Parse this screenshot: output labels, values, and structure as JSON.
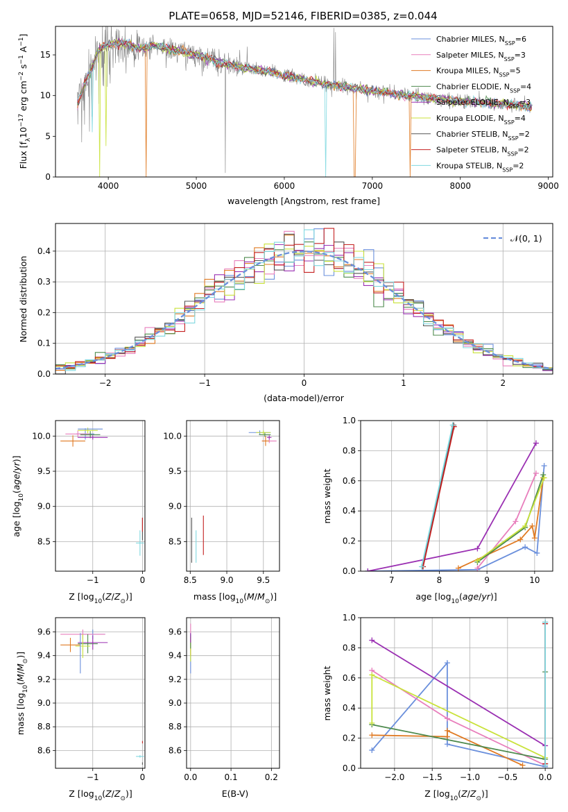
{
  "figure": {
    "title": "PLATE=0658, MJD=52146, FIBERID=0385, z=0.044"
  },
  "colors": {
    "Chabrier MILES": "#6a8fdc",
    "Salpeter MILES": "#e87ebc",
    "Kroupa MILES": "#e07a22",
    "Chabrier ELODIE": "#4d8a4d",
    "Salpeter ELODIE": "#9a2fb2",
    "Kroupa ELODIE": "#c9e23a",
    "Chabrier STELIB": "#555555",
    "Salpeter STELIB": "#c42020",
    "Kroupa STELIB": "#7fd8e0",
    "data": "#808080"
  },
  "chart_data": [
    {
      "id": "spectrum",
      "type": "line",
      "title": "PLATE=0658, MJD=52146, FIBERID=0385, z=0.044",
      "xlabel": "wavelength [Angstrom, rest frame]",
      "ylabel": "Flux [f_λ 10^-17 erg cm^-2 s^-1 A^-1]",
      "xlim": [
        3400,
        9050
      ],
      "ylim": [
        0,
        18.5
      ],
      "xticks": [
        "4000",
        "5000",
        "6000",
        "7000",
        "8000",
        "9000"
      ],
      "yticks": [
        "0",
        "5",
        "10",
        "15"
      ],
      "grid": false,
      "legend_position": "top-right",
      "legend": [
        {
          "series": "Chabrier MILES",
          "label": "Chabrier MILES, N_SSP=6",
          "main": "Chabrier MILES, N",
          "sub": "SSP",
          "tail": "=6"
        },
        {
          "series": "Salpeter MILES",
          "label": "Salpeter MILES, N_SSP=3",
          "main": "Salpeter MILES, N",
          "sub": "SSP",
          "tail": "=3"
        },
        {
          "series": "Kroupa MILES",
          "label": "Kroupa MILES, N_SSP=5",
          "main": "Kroupa MILES, N",
          "sub": "SSP",
          "tail": "=5"
        },
        {
          "series": "Chabrier ELODIE",
          "label": "Chabrier ELODIE, N_SSP=4",
          "main": "Chabrier ELODIE, N",
          "sub": "SSP",
          "tail": "=4"
        },
        {
          "series": "Salpeter ELODIE",
          "label": "Salpeter ELODIE, N_SSP=3",
          "main": "Salpeter ELODIE, N",
          "sub": "SSP",
          "tail": "=3"
        },
        {
          "series": "Kroupa ELODIE",
          "label": "Kroupa ELODIE, N_SSP=4",
          "main": "Kroupa ELODIE, N",
          "sub": "SSP",
          "tail": "=4"
        },
        {
          "series": "Chabrier STELIB",
          "label": "Chabrier STELIB, N_SSP=2",
          "main": "Chabrier STELIB, N",
          "sub": "SSP",
          "tail": "=2"
        },
        {
          "series": "Salpeter STELIB",
          "label": "Salpeter STELIB, N_SSP=2",
          "main": "Salpeter STELIB, N",
          "sub": "SSP",
          "tail": "=2"
        },
        {
          "series": "Kroupa STELIB",
          "label": "Kroupa STELIB, N_SSP=2",
          "main": "Kroupa STELIB, N",
          "sub": "SSP",
          "tail": "=2"
        }
      ],
      "continuum": [
        [
          3650,
          9.0
        ],
        [
          3700,
          10.5
        ],
        [
          3800,
          13.0
        ],
        [
          3900,
          15.8
        ],
        [
          4000,
          16.2
        ],
        [
          4100,
          16.5
        ],
        [
          4200,
          16.4
        ],
        [
          4300,
          16.0
        ],
        [
          4400,
          15.8
        ],
        [
          4500,
          16.2
        ],
        [
          4600,
          16.0
        ],
        [
          4700,
          15.6
        ],
        [
          4800,
          15.5
        ],
        [
          4900,
          15.2
        ],
        [
          5000,
          15.0
        ],
        [
          5200,
          14.3
        ],
        [
          5400,
          13.7
        ],
        [
          5600,
          13.3
        ],
        [
          5800,
          13.0
        ],
        [
          6000,
          12.5
        ],
        [
          6200,
          12.0
        ],
        [
          6400,
          11.5
        ],
        [
          6600,
          11.2
        ],
        [
          6800,
          10.9
        ],
        [
          7000,
          10.6
        ],
        [
          7200,
          10.3
        ],
        [
          7400,
          10.0
        ],
        [
          7600,
          9.8
        ],
        [
          7800,
          9.5
        ],
        [
          8000,
          9.3
        ],
        [
          8200,
          9.2
        ],
        [
          8400,
          9.0
        ],
        [
          8600,
          8.9
        ],
        [
          8800,
          8.6
        ]
      ],
      "model_dips": [
        {
          "series": "Kroupa ELODIE",
          "x": 3905,
          "y": 0.0
        },
        {
          "series": "Kroupa ELODIE",
          "x": 3970,
          "y": 3.8
        },
        {
          "series": "Kroupa MILES",
          "x": 4430,
          "y": 0.0
        },
        {
          "series": "Kroupa STELIB",
          "x": 3820,
          "y": 5.5
        },
        {
          "series": "Kroupa STELIB",
          "x": 6470,
          "y": 0.0
        },
        {
          "series": "Kroupa MILES",
          "x": 6800,
          "y": 0.0
        },
        {
          "series": "Kroupa MILES",
          "x": 7430,
          "y": 0.0
        }
      ],
      "data_spikes": [
        {
          "x": 5330,
          "y": 0.5
        },
        {
          "x": 6563,
          "y": 18.3
        },
        {
          "x": 6583,
          "y": 17.8
        },
        {
          "x": 5577,
          "y": 16.0
        }
      ]
    },
    {
      "id": "residuals",
      "type": "line",
      "xlabel": "(data-model)/error",
      "ylabel": "Normed distribution",
      "xlim": [
        -2.5,
        2.5
      ],
      "ylim": [
        0,
        0.49
      ],
      "xticks": [
        "−2",
        "−1",
        "0",
        "1",
        "2"
      ],
      "yticks": [
        "0.0",
        "0.1",
        "0.2",
        "0.3",
        "0.4"
      ],
      "grid": true,
      "legend_position": "top-right",
      "legend": [
        {
          "label": "𝒩(0, 1)",
          "style": "dashed"
        }
      ],
      "gaussian": {
        "mean": 0,
        "sigma": 1
      },
      "bin_width": 0.1
    },
    {
      "id": "age-vs-Z",
      "type": "scatter",
      "xlabel": "Z [log10(Z/Z⊙)]",
      "ylabel": "age  [log10(age/yr)]",
      "xlim": [
        -1.75,
        0.05
      ],
      "ylim": [
        8.08,
        10.22
      ],
      "xticks": [
        "−1",
        "0"
      ],
      "yticks": [
        "8.5",
        "9.0",
        "9.5",
        "10.0"
      ],
      "grid": true,
      "points": [
        {
          "series": "Chabrier MILES",
          "x": -1.15,
          "y": 10.03,
          "xerr": 0.18,
          "yerr": 0.08
        },
        {
          "series": "Salpeter MILES",
          "x": -1.3,
          "y": 10.03,
          "xerr": 0.25,
          "yerr": 0.05
        },
        {
          "series": "Kroupa MILES",
          "x": -1.4,
          "y": 9.93,
          "xerr": 0.25,
          "yerr": 0.08
        },
        {
          "series": "Chabrier ELODIE",
          "x": -1.05,
          "y": 10.02,
          "xerr": 0.2,
          "yerr": 0.05
        },
        {
          "series": "Salpeter ELODIE",
          "x": -1.0,
          "y": 9.98,
          "xerr": 0.3,
          "yerr": 0.03
        },
        {
          "series": "Kroupa ELODIE",
          "x": -1.1,
          "y": 10.08,
          "xerr": 0.2,
          "yerr": 0.04
        },
        {
          "series": "Chabrier STELIB",
          "x": 0.0,
          "y": 8.68,
          "xerr": 0.0,
          "yerr": 0.16
        },
        {
          "series": "Salpeter STELIB",
          "x": 0.0,
          "y": 8.74,
          "xerr": 0.0,
          "yerr": 0.1
        },
        {
          "series": "Kroupa STELIB",
          "x": -0.05,
          "y": 8.48,
          "xerr": 0.08,
          "yerr": 0.18
        },
        {
          "series": "Chabrier MILES",
          "x": -1.05,
          "y": 10.1,
          "xerr": 0.25,
          "yerr": 0.0
        }
      ]
    },
    {
      "id": "age-vs-mass",
      "type": "scatter",
      "xlabel": "mass [log10(M/M⊙)]",
      "xlim": [
        8.45,
        9.72
      ],
      "ylim": [
        8.08,
        10.22
      ],
      "xticks": [
        "8.5",
        "9.0",
        "9.5"
      ],
      "yticks": [
        "8.5",
        "9.0",
        "9.5",
        "10.0"
      ],
      "grid": true,
      "points": [
        {
          "series": "Chabrier MILES",
          "x": 9.45,
          "y": 10.05,
          "xerr": 0.15,
          "yerr": 0.03
        },
        {
          "series": "Salpeter MILES",
          "x": 9.58,
          "y": 9.93,
          "xerr": 0.1,
          "yerr": 0.03
        },
        {
          "series": "Kroupa MILES",
          "x": 9.53,
          "y": 9.93,
          "xerr": 0.05,
          "yerr": 0.07
        },
        {
          "series": "Chabrier ELODIE",
          "x": 9.52,
          "y": 10.02,
          "xerr": 0.08,
          "yerr": 0.03
        },
        {
          "series": "Salpeter ELODIE",
          "x": 9.58,
          "y": 9.98,
          "xerr": 0.03,
          "yerr": 0.03
        },
        {
          "series": "Kroupa ELODIE",
          "x": 9.5,
          "y": 10.05,
          "xerr": 0.1,
          "yerr": 0.03
        },
        {
          "series": "Chabrier STELIB",
          "x": 8.52,
          "y": 8.52,
          "xerr": 0.0,
          "yerr": 0.32
        },
        {
          "series": "Salpeter STELIB",
          "x": 8.68,
          "y": 8.59,
          "xerr": 0.0,
          "yerr": 0.28
        },
        {
          "series": "Kroupa STELIB",
          "x": 8.58,
          "y": 8.43,
          "xerr": 0.0,
          "yerr": 0.23
        }
      ]
    },
    {
      "id": "mass-weight-vs-age",
      "type": "line",
      "xlabel": "age  [log10(age/yr)]",
      "ylabel": "mass weight",
      "xlim": [
        6.35,
        10.38
      ],
      "ylim": [
        0,
        1
      ],
      "xticks": [
        "7",
        "8",
        "9",
        "10"
      ],
      "yticks": [
        "0.0",
        "0.2",
        "0.4",
        "0.6",
        "0.8",
        "1.0"
      ],
      "grid": true,
      "series": [
        {
          "name": "Chabrier MILES",
          "points": [
            [
              6.5,
              0.0
            ],
            [
              8.8,
              0.01
            ],
            [
              9.8,
              0.16
            ],
            [
              10.05,
              0.12
            ],
            [
              10.2,
              0.7
            ]
          ]
        },
        {
          "name": "Salpeter MILES",
          "points": [
            [
              8.8,
              0.02
            ],
            [
              9.6,
              0.33
            ],
            [
              10.03,
              0.65
            ]
          ]
        },
        {
          "name": "Kroupa MILES",
          "points": [
            [
              8.4,
              0.02
            ],
            [
              9.7,
              0.21
            ],
            [
              9.95,
              0.3
            ],
            [
              10.0,
              0.22
            ],
            [
              10.18,
              0.62
            ]
          ]
        },
        {
          "name": "Chabrier ELODIE",
          "points": [
            [
              8.8,
              0.06
            ],
            [
              9.8,
              0.29
            ],
            [
              10.18,
              0.64
            ]
          ]
        },
        {
          "name": "Salpeter ELODIE",
          "points": [
            [
              6.5,
              0.0
            ],
            [
              8.8,
              0.15
            ],
            [
              10.03,
              0.85
            ]
          ]
        },
        {
          "name": "Kroupa ELODIE",
          "points": [
            [
              8.8,
              0.07
            ],
            [
              9.8,
              0.3
            ],
            [
              10.2,
              0.62
            ]
          ]
        },
        {
          "name": "Chabrier STELIB",
          "points": [
            [
              7.65,
              0.03
            ],
            [
              8.3,
              0.97
            ]
          ]
        },
        {
          "name": "Salpeter STELIB",
          "points": [
            [
              7.66,
              0.03
            ],
            [
              8.31,
              0.96
            ]
          ]
        },
        {
          "name": "Kroupa STELIB",
          "points": [
            [
              7.63,
              0.03
            ],
            [
              8.28,
              0.97
            ]
          ]
        }
      ]
    },
    {
      "id": "mass-vs-Z",
      "type": "scatter",
      "xlabel": "Z [log10(Z/Z⊙)]",
      "ylabel": "mass [log10(M/M⊙)]",
      "xlim": [
        -1.75,
        0.05
      ],
      "ylim": [
        8.45,
        9.72
      ],
      "xticks": [
        "−1",
        "0"
      ],
      "yticks": [
        "8.6",
        "8.8",
        "9.0",
        "9.2",
        "9.4",
        "9.6"
      ],
      "grid": true,
      "points": [
        {
          "series": "Chabrier MILES",
          "x": -1.0,
          "y": 9.58,
          "xerr": 0.25,
          "yerr": 0.04
        },
        {
          "series": "Salpeter MILES",
          "x": -1.2,
          "y": 9.58,
          "xerr": 0.45,
          "yerr": 0.04
        },
        {
          "series": "Kroupa MILES",
          "x": -1.45,
          "y": 9.49,
          "xerr": 0.2,
          "yerr": 0.06
        },
        {
          "series": "Chabrier ELODIE",
          "x": -1.1,
          "y": 9.5,
          "xerr": 0.2,
          "yerr": 0.08
        },
        {
          "series": "Salpeter ELODIE",
          "x": -1.0,
          "y": 9.51,
          "xerr": 0.3,
          "yerr": 0.06
        },
        {
          "series": "Kroupa ELODIE",
          "x": -1.2,
          "y": 9.48,
          "xerr": 0.15,
          "yerr": 0.1
        },
        {
          "series": "Chabrier MILES",
          "x": -1.25,
          "y": 9.42,
          "xerr": 0.0,
          "yerr": 0.17
        },
        {
          "series": "Kroupa STELIB",
          "x": -0.05,
          "y": 8.55,
          "xerr": 0.08,
          "yerr": 0.01
        },
        {
          "series": "Salpeter STELIB",
          "x": 0.0,
          "y": 8.67,
          "xerr": 0.0,
          "yerr": 0.01
        },
        {
          "series": "Chabrier STELIB",
          "x": 0.0,
          "y": 8.49,
          "xerr": 0.0,
          "yerr": 0.01
        }
      ]
    },
    {
      "id": "mass-vs-EBV",
      "type": "scatter",
      "xlabel": "E(B-V)",
      "xlim": [
        -0.01,
        0.22
      ],
      "ylim": [
        8.45,
        9.72
      ],
      "xticks": [
        "0.0",
        "0.1",
        "0.2"
      ],
      "yticks": [
        "8.6",
        "8.8",
        "9.0",
        "9.2",
        "9.4",
        "9.6"
      ],
      "grid": true,
      "points": [
        {
          "series": "Chabrier MILES",
          "x": 0.0,
          "y": 9.42,
          "xerr": 0.0,
          "yerr": 0.17
        },
        {
          "series": "Salpeter MILES",
          "x": 0.0,
          "y": 9.6,
          "xerr": 0.0,
          "yerr": 0.07
        },
        {
          "series": "Kroupa MILES",
          "x": 0.0,
          "y": 9.48,
          "xerr": 0.0,
          "yerr": 0.08
        },
        {
          "series": "Kroupa ELODIE",
          "x": 0.0,
          "y": 9.45,
          "xerr": 0.0,
          "yerr": 0.1
        },
        {
          "series": "Chabrier ELODIE",
          "x": 0.0,
          "y": 9.52,
          "xerr": 0.0,
          "yerr": 0.06
        },
        {
          "series": "Salpeter ELODIE",
          "x": 0.0,
          "y": 9.55,
          "xerr": 0.0,
          "yerr": 0.04
        }
      ]
    },
    {
      "id": "mass-weight-vs-Z",
      "type": "line",
      "xlabel": "Z [log10(Z/Z⊙)]",
      "ylabel": "mass weight",
      "xlim": [
        -2.45,
        0.1
      ],
      "ylim": [
        0,
        1
      ],
      "xticks": [
        "−2.0",
        "−1.5",
        "−1.0",
        "−0.5",
        "0.0"
      ],
      "yticks": [
        "0.0",
        "0.2",
        "0.4",
        "0.6",
        "0.8",
        "1.0"
      ],
      "grid": true,
      "series": [
        {
          "name": "Chabrier MILES",
          "points": [
            [
              -2.3,
              0.12
            ],
            [
              -1.3,
              0.7
            ],
            [
              -1.3,
              0.16
            ],
            [
              0.0,
              0.01
            ]
          ]
        },
        {
          "name": "Salpeter MILES",
          "points": [
            [
              -2.3,
              0.65
            ],
            [
              -1.3,
              0.33
            ],
            [
              0.0,
              0.02
            ]
          ]
        },
        {
          "name": "Kroupa MILES",
          "points": [
            [
              -2.3,
              0.22
            ],
            [
              -1.3,
              0.21
            ],
            [
              -1.3,
              0.25
            ],
            [
              -0.3,
              0.02
            ]
          ]
        },
        {
          "name": "Chabrier ELODIE",
          "points": [
            [
              -2.3,
              0.29
            ],
            [
              0.0,
              0.06
            ],
            [
              0.0,
              0.64
            ]
          ]
        },
        {
          "name": "Salpeter ELODIE",
          "points": [
            [
              -2.3,
              0.85
            ],
            [
              0.0,
              0.15
            ]
          ]
        },
        {
          "name": "Kroupa ELODIE",
          "points": [
            [
              -2.3,
              0.3
            ],
            [
              -2.3,
              0.62
            ],
            [
              0.0,
              0.07
            ]
          ]
        },
        {
          "name": "Chabrier STELIB",
          "points": [
            [
              0.0,
              0.03
            ],
            [
              0.0,
              0.97
            ]
          ]
        },
        {
          "name": "Salpeter STELIB",
          "points": [
            [
              0.0,
              0.03
            ],
            [
              0.0,
              0.96
            ]
          ]
        },
        {
          "name": "Kroupa STELIB",
          "points": [
            [
              0.0,
              0.02
            ],
            [
              0.0,
              0.97
            ]
          ]
        }
      ]
    }
  ]
}
